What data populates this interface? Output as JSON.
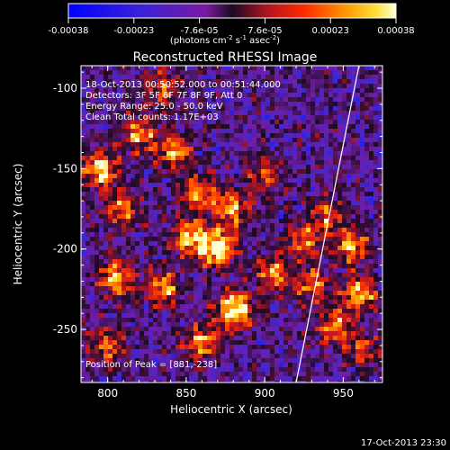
{
  "chart_data": {
    "type": "heatmap",
    "title": "Reconstructed RHESSI Image",
    "xlabel": "Heliocentric X (arcsec)",
    "ylabel": "Heliocentric Y (arcsec)",
    "xlim": [
      783,
      975
    ],
    "ylim": [
      -283,
      -86
    ],
    "xticks": [
      800,
      850,
      900,
      950
    ],
    "yticks": [
      -100,
      -150,
      -200,
      -250
    ],
    "colorbar": {
      "ticks": [
        "-0.00038",
        "-0.00023",
        "-7.6e-05",
        "7.6e-05",
        "0.00023",
        "0.00038"
      ],
      "label_parts": [
        "(photons cm",
        "-2",
        " s",
        "-1",
        " asec",
        "-2",
        ")"
      ]
    },
    "annotations": [
      "18-Oct-2013 00:50:52.000 to 00:51:44.000",
      "Detectors: 3F 5F 6F 7F 8F 9F, Att 0",
      "Energy Range: 25.0 - 50.0 keV",
      "Clean     Total counts: 1.17E+03"
    ],
    "peak_label": "Position of Peak = [881,-238]",
    "peak": [
      881,
      -238
    ],
    "hot_spots": [
      {
        "x": 795,
        "y": -150,
        "level": 0.85
      },
      {
        "x": 820,
        "y": -128,
        "level": 0.7
      },
      {
        "x": 808,
        "y": -175,
        "level": 0.65
      },
      {
        "x": 842,
        "y": -140,
        "level": 0.7
      },
      {
        "x": 870,
        "y": -200,
        "level": 0.95
      },
      {
        "x": 852,
        "y": -193,
        "level": 0.8
      },
      {
        "x": 858,
        "y": -165,
        "level": 0.7
      },
      {
        "x": 879,
        "y": -175,
        "level": 0.7
      },
      {
        "x": 881,
        "y": -238,
        "level": 1.0
      },
      {
        "x": 860,
        "y": -258,
        "level": 0.7
      },
      {
        "x": 835,
        "y": -225,
        "level": 0.7
      },
      {
        "x": 805,
        "y": -218,
        "level": 0.75
      },
      {
        "x": 800,
        "y": -260,
        "level": 0.6
      },
      {
        "x": 905,
        "y": -215,
        "level": 0.65
      },
      {
        "x": 925,
        "y": -195,
        "level": 0.6
      },
      {
        "x": 940,
        "y": -178,
        "level": 0.55
      },
      {
        "x": 955,
        "y": -198,
        "level": 0.7
      },
      {
        "x": 960,
        "y": -228,
        "level": 0.75
      },
      {
        "x": 945,
        "y": -248,
        "level": 0.65
      },
      {
        "x": 930,
        "y": -222,
        "level": 0.6
      },
      {
        "x": 962,
        "y": -262,
        "level": 0.5
      },
      {
        "x": 900,
        "y": -155,
        "level": 0.5
      },
      {
        "x": 835,
        "y": -100,
        "level": 0.55
      }
    ],
    "limb_line": [
      [
        920,
        -283
      ],
      [
        960,
        -86
      ]
    ],
    "timestamp": "17-Oct-2013 23:30"
  }
}
